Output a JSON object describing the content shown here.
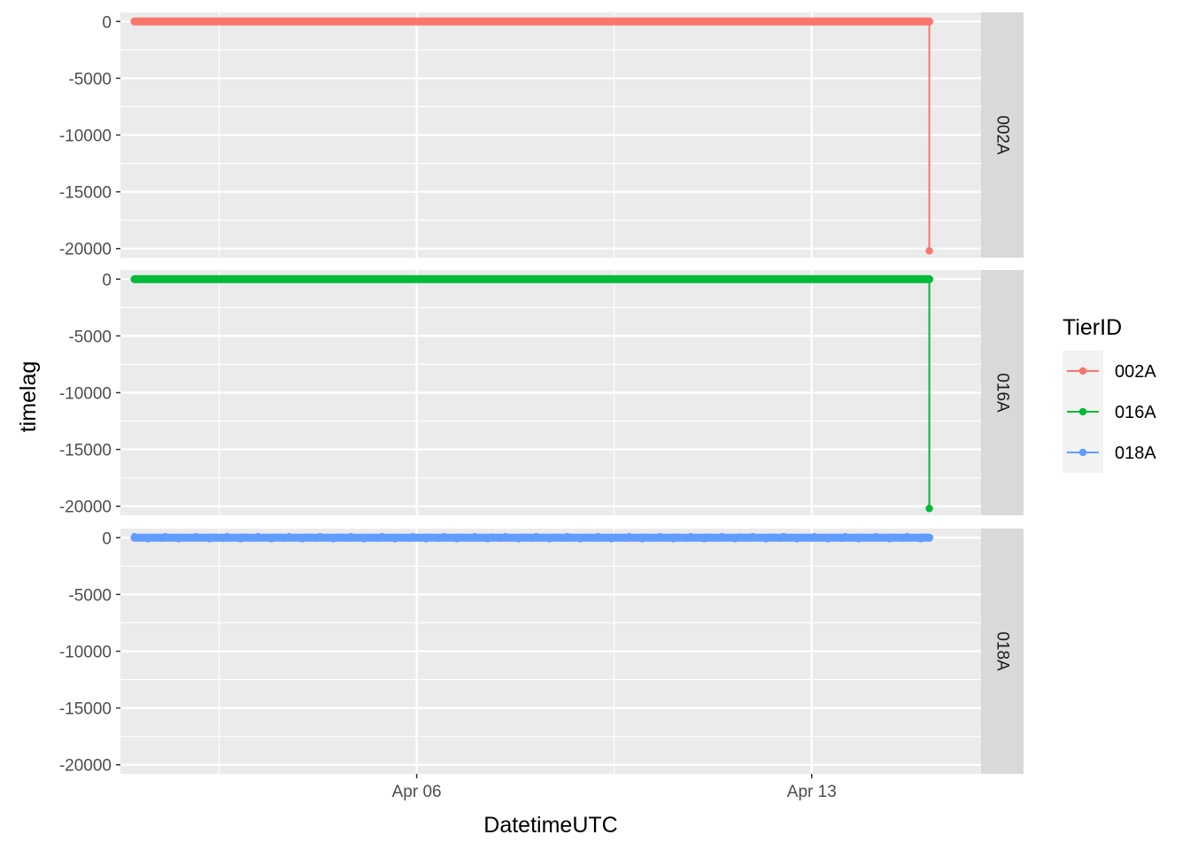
{
  "chart_data": {
    "type": "line",
    "facet_by": "TierID",
    "xlabel": "DatetimeUTC",
    "ylabel": "timelag",
    "xlim": [
      "2024-03-31T18:00",
      "2024-04-16T00:00"
    ],
    "ylim": [
      -20800,
      800
    ],
    "x_ticks": [
      {
        "value": "2024-04-06T00:00",
        "label": "Apr 06"
      },
      {
        "value": "2024-04-13T00:00",
        "label": "Apr 13"
      }
    ],
    "x_minor_ticks": [
      "2024-04-02T12:00",
      "2024-04-09T12:00"
    ],
    "y_ticks": [
      0,
      -5000,
      -10000,
      -15000,
      -20000
    ],
    "y_tick_labels": [
      "0",
      "-5000",
      "-10000",
      "-15000",
      "-20000"
    ],
    "y_minor_ticks": [
      -2500,
      -7500,
      -12500,
      -17500
    ],
    "grid": true,
    "legend": {
      "title": "TierID",
      "position": "right",
      "entries": [
        "002A",
        "016A",
        "018A"
      ]
    },
    "series": [
      {
        "name": "002A",
        "color": "#F8766D",
        "x_start": "2024-04-01T00:00",
        "x_end": "2024-04-15T02:00",
        "typical_value": 0,
        "points": [
          {
            "x": "2024-04-15T02:00",
            "y": 0
          },
          {
            "x": "2024-04-15T02:00",
            "y": -20200
          }
        ]
      },
      {
        "name": "016A",
        "color": "#00BA38",
        "x_start": "2024-04-01T00:00",
        "x_end": "2024-04-15T02:00",
        "typical_value": 0,
        "points": [
          {
            "x": "2024-04-15T02:00",
            "y": 0
          },
          {
            "x": "2024-04-15T02:00",
            "y": -20200
          }
        ]
      },
      {
        "name": "018A",
        "color": "#619CFF",
        "x_start": "2024-04-01T00:00",
        "x_end": "2024-04-15T02:00",
        "typical_value": 0,
        "points": []
      }
    ]
  }
}
